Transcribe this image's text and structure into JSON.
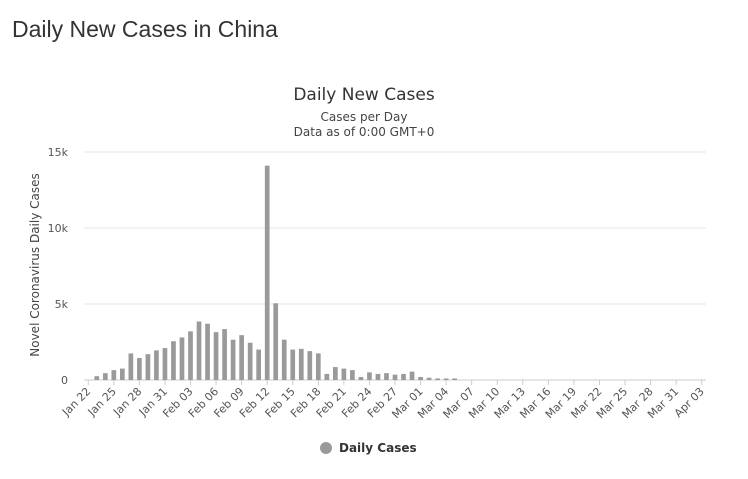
{
  "page": {
    "heading": "Daily New Cases in China"
  },
  "chart_data": {
    "type": "bar",
    "title": "Daily New Cases",
    "subtitle_lines": [
      "Cases per Day",
      "Data as of 0:00 GMT+0"
    ],
    "xlabel": "",
    "ylabel": "Novel Coronavirus Daily Cases",
    "ylim": [
      0,
      15000
    ],
    "y_ticks": [
      0,
      5000,
      10000,
      15000
    ],
    "y_tick_labels": [
      "0",
      "5k",
      "10k",
      "15k"
    ],
    "x_tick_labels": [
      "Jan 22",
      "Jan 25",
      "Jan 28",
      "Jan 31",
      "Feb 03",
      "Feb 06",
      "Feb 09",
      "Feb 12",
      "Feb 15",
      "Feb 18",
      "Feb 21",
      "Feb 24",
      "Feb 27",
      "Mar 01",
      "Mar 04",
      "Mar 07",
      "Mar 10",
      "Mar 13",
      "Mar 16",
      "Mar 19",
      "Mar 22",
      "Mar 25",
      "Mar 28",
      "Mar 31",
      "Apr 03"
    ],
    "grid": true,
    "legend_position": "bottom-center",
    "colors": {
      "bar": "#9a9a9a",
      "grid": "#e6e6e6",
      "axis": "#cccccc"
    },
    "series": [
      {
        "name": "Daily Cases",
        "values": [
          0,
          250,
          450,
          650,
          750,
          1750,
          1450,
          1700,
          1950,
          2100,
          2550,
          2800,
          3200,
          3850,
          3700,
          3150,
          3350,
          2650,
          2950,
          2450,
          2000,
          14100,
          5050,
          2650,
          2000,
          2050,
          1900,
          1750,
          400,
          850,
          750,
          650,
          200,
          500,
          400,
          450,
          350,
          400,
          550,
          200,
          150,
          100,
          100,
          100,
          0,
          0,
          0,
          0,
          0,
          0,
          0,
          0,
          0,
          0,
          0,
          0,
          0,
          0,
          0,
          0,
          0,
          0,
          0,
          0,
          0,
          0,
          0,
          0,
          0,
          0,
          0,
          0,
          0
        ]
      }
    ]
  }
}
